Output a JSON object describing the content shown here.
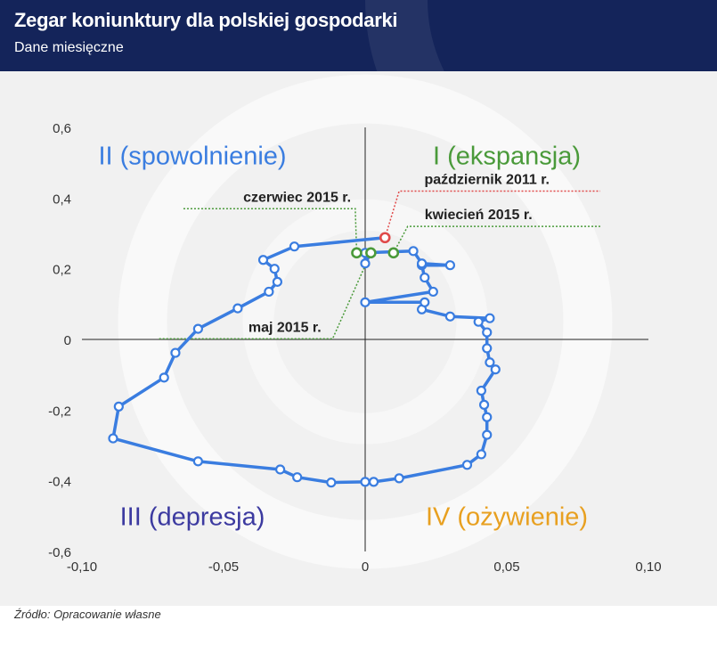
{
  "header": {
    "title": "Zegar koniunktury dla polskiej gospodarki",
    "subtitle": "Dane miesięczne"
  },
  "source": "Źródło: Opracowanie własne",
  "colors": {
    "header_bg": "#14245a",
    "line": "#3a7de0",
    "highlight_green": "#4a9a3a",
    "highlight_red": "#e04a4a",
    "quadrant_I": "#4a9a3a",
    "quadrant_II": "#3a7de0",
    "quadrant_III": "#3c3aa0",
    "quadrant_IV": "#e8a020"
  },
  "chart_data": {
    "type": "line",
    "xlim": [
      -0.1,
      0.1
    ],
    "ylim": [
      -0.6,
      0.6
    ],
    "x_ticks": [
      -0.1,
      -0.05,
      0,
      0.05,
      0.1
    ],
    "x_tick_labels": [
      "-0,10",
      "-0,05",
      "0",
      "0,05",
      "0,10"
    ],
    "y_ticks": [
      0.6,
      0.4,
      0.2,
      0,
      -0.2,
      -0.4,
      -0.6
    ],
    "y_tick_labels": [
      "0,6",
      "0,4",
      "0,2",
      "0",
      "-0,2",
      "-0,4",
      "-0,6"
    ],
    "grid": false,
    "quadrants": [
      {
        "id": "I",
        "label": "I (ekspansja)",
        "color": "#4a9a3a",
        "x": 0.05,
        "y": 0.52
      },
      {
        "id": "II",
        "label": "II (spowolnienie)",
        "color": "#3a7de0",
        "x": -0.061,
        "y": 0.52
      },
      {
        "id": "III",
        "label": "III (depresja)",
        "color": "#3c3aa0",
        "x": -0.061,
        "y": -0.5
      },
      {
        "id": "IV",
        "label": "IV (ożywienie)",
        "color": "#e8a020",
        "x": 0.05,
        "y": -0.5
      }
    ],
    "series": [
      {
        "x": [
          0.007,
          -0.025,
          -0.036,
          -0.032,
          -0.031,
          -0.034,
          -0.045,
          -0.059,
          -0.067,
          -0.071,
          -0.087,
          -0.089,
          -0.059,
          -0.03,
          -0.024,
          -0.012,
          0.0,
          0.003,
          0.012,
          0.036,
          0.041,
          0.043,
          0.043,
          0.042,
          0.041,
          0.046,
          0.044,
          0.043,
          0.043,
          0.04,
          0.044,
          0.03,
          0.02,
          0.021,
          0.0,
          0.024,
          0.021,
          0.02,
          0.03,
          0.02,
          0.017,
          0.0,
          0.0,
          0.002
        ],
        "y": [
          0.288,
          0.263,
          0.225,
          0.2,
          0.163,
          0.135,
          0.088,
          0.03,
          -0.038,
          -0.108,
          -0.19,
          -0.28,
          -0.345,
          -0.368,
          -0.39,
          -0.405,
          -0.403,
          -0.403,
          -0.393,
          -0.355,
          -0.325,
          -0.27,
          -0.22,
          -0.185,
          -0.145,
          -0.085,
          -0.065,
          -0.025,
          0.02,
          0.05,
          0.06,
          0.065,
          0.085,
          0.105,
          0.105,
          0.135,
          0.175,
          0.21,
          0.21,
          0.215,
          0.25,
          0.245,
          0.215,
          0.245
        ]
      }
    ],
    "highlights": [
      {
        "label": "październik 2011 r.",
        "x": 0.007,
        "y": 0.288,
        "color": "#e04a4a",
        "label_x": 0.043,
        "label_y": 0.44
      },
      {
        "label": "czerwiec 2015 r.",
        "x": -0.003,
        "y": 0.245,
        "color": "#4a9a3a",
        "label_x": -0.017,
        "label_y": 0.39
      },
      {
        "label": "maj 2015 r.",
        "x": 0.002,
        "y": 0.245,
        "color": "#4a9a3a",
        "label_x": -0.035,
        "label_y": 0.022
      },
      {
        "label": "kwiecień 2015 r.",
        "x": 0.01,
        "y": 0.245,
        "color": "#4a9a3a",
        "label_x": 0.04,
        "label_y": 0.34
      }
    ]
  }
}
